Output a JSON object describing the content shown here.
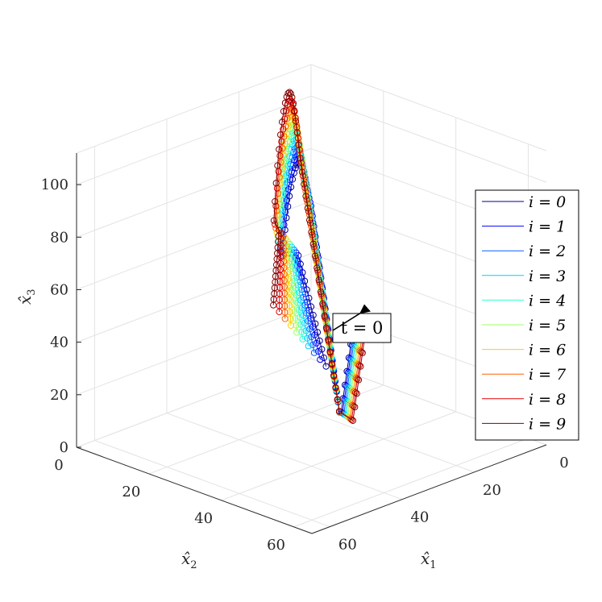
{
  "chart_data": {
    "type": "line",
    "plot_style": "3d line with circle markers",
    "x_axis": {
      "label": "x̂",
      "label_sub": "1",
      "ticks": [
        "0",
        "20",
        "40",
        "60"
      ],
      "range": [
        0,
        65
      ]
    },
    "y_axis": {
      "label": "x̂",
      "label_sub": "2",
      "ticks": [
        "0",
        "20",
        "40",
        "60"
      ],
      "range": [
        0,
        65
      ]
    },
    "z_axis": {
      "label": "x̂",
      "label_sub": "3",
      "ticks": [
        "0",
        "20",
        "40",
        "60",
        "80",
        "100"
      ],
      "range": [
        0,
        112
      ]
    },
    "grid": true,
    "legend_position": "right",
    "annotation": {
      "text": "t = 0",
      "arrow": true
    },
    "series": [
      {
        "name": "i = 0",
        "color": "#00008f"
      },
      {
        "name": "i = 1",
        "color": "#0000ff"
      },
      {
        "name": "i = 2",
        "color": "#0060ff"
      },
      {
        "name": "i = 3",
        "color": "#00cfff"
      },
      {
        "name": "i = 4",
        "color": "#30ffcf"
      },
      {
        "name": "i = 5",
        "color": "#9fff60"
      },
      {
        "name": "i = 6",
        "color": "#ffcf00"
      },
      {
        "name": "i = 7",
        "color": "#ff6000"
      },
      {
        "name": "i = 8",
        "color": "#df0000"
      },
      {
        "name": "i = 9",
        "color": "#800000"
      }
    ]
  }
}
